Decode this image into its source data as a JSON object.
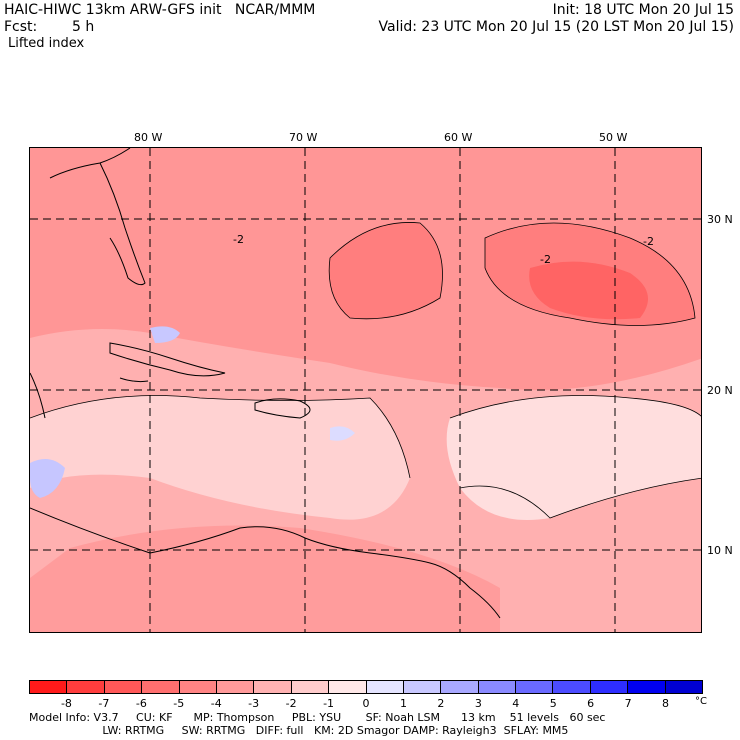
{
  "header": {
    "title_left": "HAIC-HIWC 13km ARW-GFS init   NCAR/MMM",
    "forecast_label": "Fcst:",
    "forecast_value": "5 h",
    "init": "Init: 18 UTC Mon 20 Jul 15",
    "valid": "Valid: 23 UTC Mon 20 Jul 15 (20 LST Mon 20 Jul 15)",
    "field_name": "Lifted index"
  },
  "map": {
    "lon_labels": [
      "80 W",
      "70 W",
      "60 W",
      "50 W"
    ],
    "lat_labels": [
      "30 N",
      "20 N",
      "10 N"
    ],
    "contour_labels": [
      "-2",
      "-2",
      "-2"
    ]
  },
  "colorbar": {
    "unit": "°C",
    "ticks": [
      "-8",
      "-7",
      "-6",
      "-5",
      "-4",
      "-3",
      "-2",
      "-1",
      "0",
      "1",
      "2",
      "3",
      "4",
      "5",
      "6",
      "7",
      "8"
    ],
    "colors": [
      "#ff1a1a",
      "#ff3d3d",
      "#ff5858",
      "#ff6f6f",
      "#ff8484",
      "#ff9a9a",
      "#ffb2b2",
      "#ffcccc",
      "#ffe8e8",
      "#e4e4ff",
      "#c8c8ff",
      "#a8a8ff",
      "#8a8aff",
      "#6a6aff",
      "#4c4cff",
      "#2e2eff",
      "#0000f0",
      "#0000d2"
    ]
  },
  "footer": {
    "line1": "Model Info: V3.7     CU: KF      MP: Thompson     PBL: YSU       SF: Noah LSM      13 km    51 levels   60 sec",
    "line2": "                     LW: RRTMG     SW: RRTMG   DIFF: full   KM: 2D Smagor DAMP: Rayleigh3  SFLAY: MM5"
  }
}
